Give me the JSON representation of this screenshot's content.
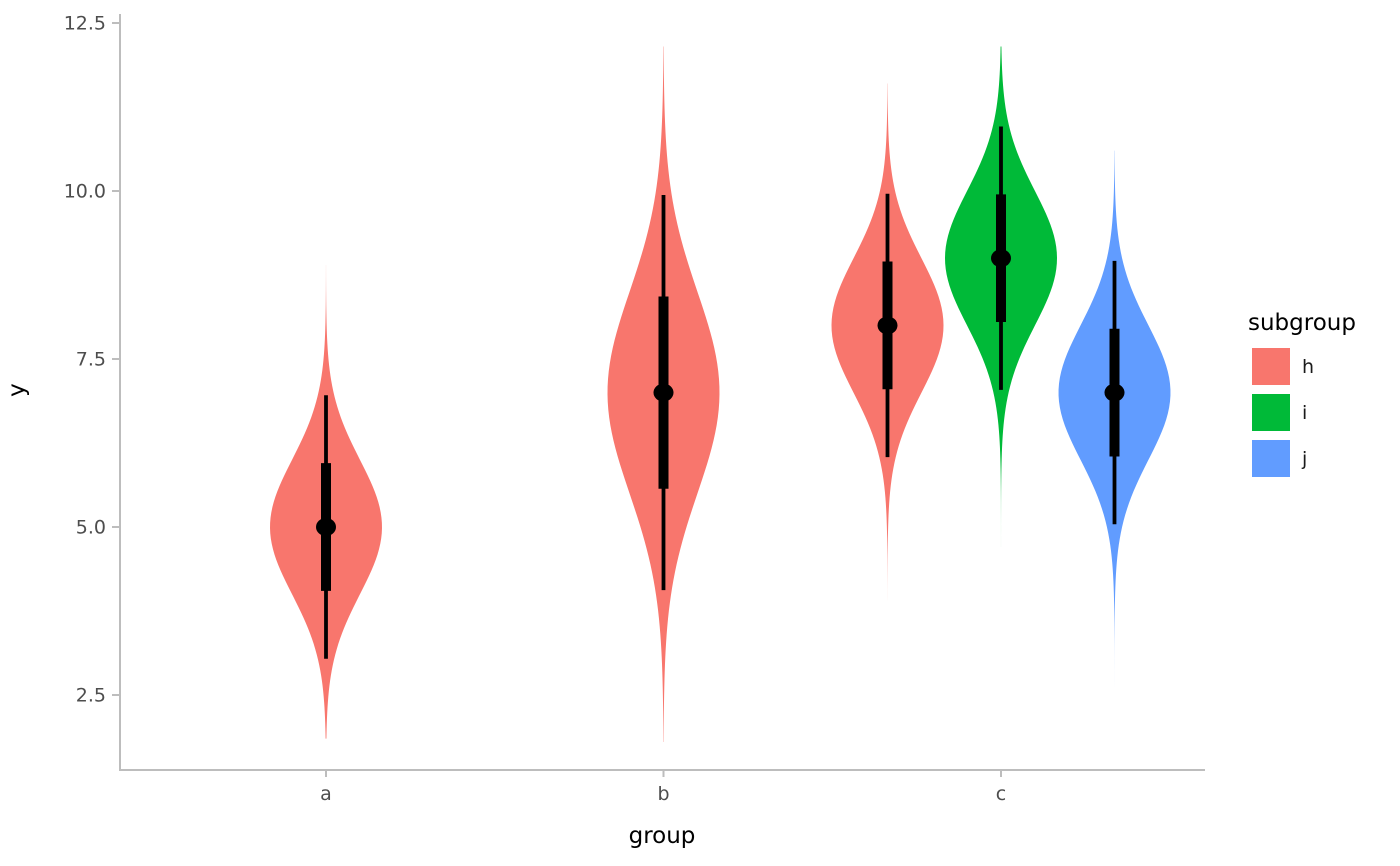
{
  "chart_data": {
    "type": "violin",
    "title": "",
    "xlabel": "group",
    "ylabel": "y",
    "x_ticks": [
      "a",
      "b",
      "c"
    ],
    "y_ticks": [
      {
        "label": "2.5",
        "value": 2.5
      },
      {
        "label": "5.0",
        "value": 5.0
      },
      {
        "label": "7.5",
        "value": 7.5
      },
      {
        "label": "10.0",
        "value": 10.0
      },
      {
        "label": "12.5",
        "value": 12.5
      }
    ],
    "y_axis_range_shown": [
      1.4,
      12.7
    ],
    "grid": false,
    "legend": {
      "title": "subgroup",
      "position": "right",
      "entries": [
        {
          "label": "h",
          "color": "#F8766D"
        },
        {
          "label": "i",
          "color": "#00BA38"
        },
        {
          "label": "j",
          "color": "#619CFF"
        }
      ]
    },
    "series": [
      {
        "group": "a",
        "subgroup": "h",
        "color": "#F8766D",
        "median": 5.0,
        "interval_66": [
          4.05,
          5.95
        ],
        "interval_95": [
          3.04,
          6.96
        ],
        "density_mean": 5.0,
        "density_sd": 1.0,
        "slab_range": [
          1.85,
          8.9
        ]
      },
      {
        "group": "b",
        "subgroup": "h",
        "color": "#F8766D",
        "median": 7.0,
        "interval_66": [
          5.57,
          8.43
        ],
        "interval_95": [
          4.06,
          9.94
        ],
        "density_mean": 7.0,
        "density_sd": 1.5,
        "slab_range": [
          1.8,
          12.15
        ]
      },
      {
        "group": "c",
        "subgroup": "h",
        "color": "#F8766D",
        "median": 8.0,
        "interval_66": [
          7.05,
          8.95
        ],
        "interval_95": [
          6.04,
          9.96
        ],
        "density_mean": 8.0,
        "density_sd": 1.0,
        "slab_range": [
          3.9,
          11.6
        ]
      },
      {
        "group": "c",
        "subgroup": "i",
        "color": "#00BA38",
        "median": 9.0,
        "interval_66": [
          8.05,
          9.95
        ],
        "interval_95": [
          7.04,
          10.96
        ],
        "density_mean": 9.0,
        "density_sd": 1.0,
        "slab_range": [
          4.7,
          12.15
        ]
      },
      {
        "group": "c",
        "subgroup": "j",
        "color": "#619CFF",
        "median": 7.0,
        "interval_66": [
          6.05,
          7.95
        ],
        "interval_95": [
          5.04,
          8.96
        ],
        "density_mean": 7.0,
        "density_sd": 1.0,
        "slab_range": [
          2.6,
          10.6
        ]
      }
    ],
    "style": {
      "axis_line_color": "#BDBDBD",
      "axis_text_color": "#4D4D4D",
      "point_interval_color": "#000000",
      "background": "#ffffff"
    }
  }
}
